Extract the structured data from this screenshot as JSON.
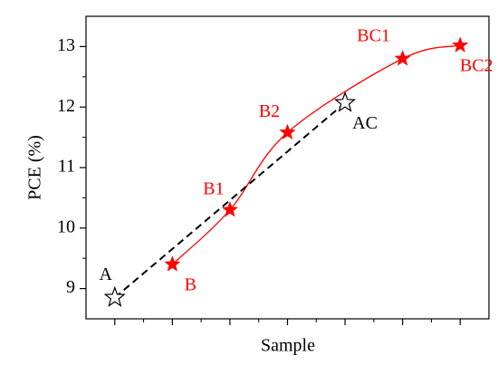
{
  "chart_data": {
    "type": "line",
    "xlabel": "Sample",
    "ylabel": "PCE (%)",
    "xlim": [
      0.5,
      7.5
    ],
    "xticks": [
      1,
      2,
      3,
      4,
      5,
      6,
      7
    ],
    "xminorticks": [
      1.5,
      2.5,
      3.5,
      4.5,
      5.5,
      6.5
    ],
    "ylim": [
      8.5,
      13.5
    ],
    "yticks": [
      9,
      10,
      11,
      12,
      13
    ],
    "yminorticks": [
      9.5,
      10.5,
      11.5,
      12.5
    ],
    "series": [
      {
        "color": "#ff0000",
        "marker": "filled-star",
        "line": "smooth",
        "x": [
          2,
          3,
          4,
          6,
          7
        ],
        "values": [
          9.4,
          10.3,
          11.58,
          12.8,
          13.02
        ],
        "labels": [
          "B",
          "B1",
          "B2",
          "BC1",
          "BC2"
        ]
      },
      {
        "color": "#000000",
        "marker": "open-star",
        "line": "dashed",
        "x": [
          1,
          5
        ],
        "values": [
          8.85,
          12.07
        ],
        "labels": [
          "A",
          "AC"
        ]
      }
    ]
  }
}
